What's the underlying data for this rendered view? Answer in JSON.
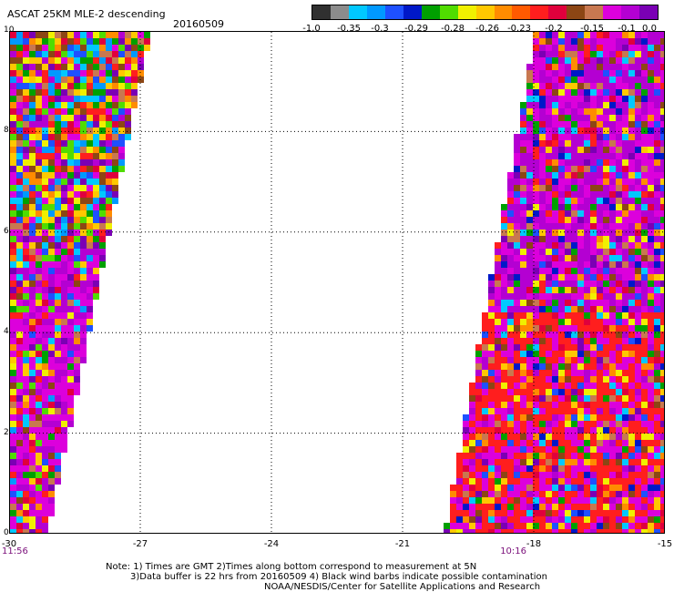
{
  "header": {
    "title": "ASCAT 25KM MLE-2 descending",
    "date": "20160509"
  },
  "colorbar": {
    "colors": [
      "#303030",
      "#8c8c8c",
      "#00c8ff",
      "#0099ff",
      "#1e50ff",
      "#0018c8",
      "#00a000",
      "#50dc00",
      "#f0f000",
      "#ffc800",
      "#ff8c00",
      "#ff5a00",
      "#ff1e1e",
      "#e0003c",
      "#8c4614",
      "#c87850",
      "#dc00dc",
      "#b400d2",
      "#7a00b4"
    ],
    "tick_labels": [
      "-1.0",
      "-0.35",
      "-0.3",
      "-0.29",
      "-0.28",
      "-0.26",
      "-0.23",
      "-0.2",
      "-0.15",
      "-0.1",
      "0.0"
    ]
  },
  "map": {
    "x_axis": {
      "ticks": [
        "-30",
        "-27",
        "-24",
        "-21",
        "-18",
        "-15"
      ],
      "range": [
        -30,
        -15
      ]
    },
    "y_axis": {
      "ticks": [
        "0",
        "2",
        "4",
        "6",
        "8",
        "10"
      ],
      "range": [
        0,
        10
      ]
    },
    "gridlines": "dotted",
    "time_labels": [
      {
        "text": "11:56",
        "lon": -30
      },
      {
        "text": "10:16",
        "lon": -18.6
      }
    ]
  },
  "footer": {
    "line1": "Note: 1) Times are GMT 2)Times along bottom correspond to measurement at 5N",
    "line2": "3)Data buffer is 22 hrs from 20160509 4) Black wind barbs indicate possible contamination",
    "line3": "NOAA/NESDIS/Center for Satellite Applications and Research"
  }
}
